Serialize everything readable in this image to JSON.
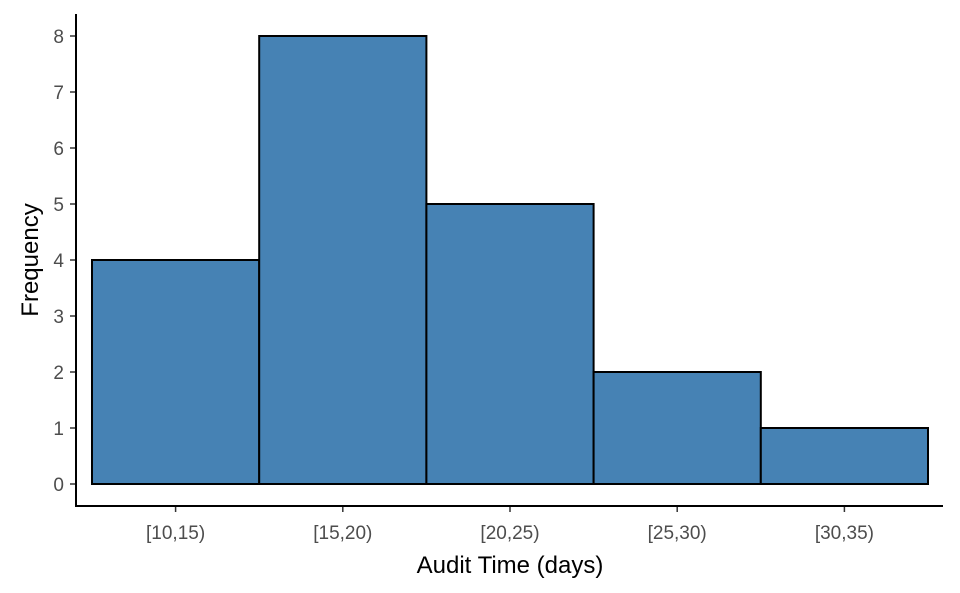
{
  "chart_data": {
    "type": "bar",
    "categories": [
      "[10,15)",
      "[15,20)",
      "[20,25)",
      "[25,30)",
      "[30,35)"
    ],
    "values": [
      4,
      8,
      5,
      2,
      1
    ],
    "title": "",
    "xlabel": "Audit Time (days)",
    "ylabel": "Frequency",
    "ylim": [
      0,
      8
    ],
    "yticks": [
      0,
      1,
      2,
      3,
      4,
      5,
      6,
      7,
      8
    ],
    "grid": false,
    "bar_color": "#4682b4",
    "bar_edge_color": "#000000"
  }
}
